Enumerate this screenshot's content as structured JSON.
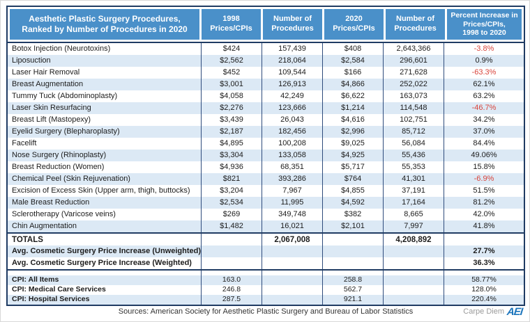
{
  "chart_data": {
    "type": "table",
    "title": "Aesthetic Plastic Surgery Procedures, Ranked by Number of Procedures in 2020",
    "header": {
      "procedure_lines": [
        "Aesthetic Plastic Surgery Procedures,",
        "Ranked by Number of Procedures in 2020"
      ],
      "price_1998_lines": [
        "1998",
        "Prices/CPIs"
      ],
      "count_1998_lines": [
        "Number of",
        "Procedures"
      ],
      "price_2020_lines": [
        "2020",
        "Prices/CPIs"
      ],
      "count_2020_lines": [
        "Number of",
        "Procedures"
      ],
      "pct_lines": [
        "Percent Increase in",
        "Prices/CPIs,",
        "1998 to 2020"
      ]
    },
    "rows": [
      {
        "procedure": "Botox Injection (Neurotoxins)",
        "price_1998": "$424",
        "procedures_1998": "157,439",
        "price_2020": "$408",
        "procedures_2020": "2,643,366",
        "pct_increase": "-3.8%"
      },
      {
        "procedure": "Liposuction",
        "price_1998": "$2,562",
        "procedures_1998": "218,064",
        "price_2020": "$2,584",
        "procedures_2020": "296,601",
        "pct_increase": "0.9%"
      },
      {
        "procedure": "Laser Hair Removal",
        "price_1998": "$452",
        "procedures_1998": "109,544",
        "price_2020": "$166",
        "procedures_2020": "271,628",
        "pct_increase": "-63.3%"
      },
      {
        "procedure": "Breast Augmentation",
        "price_1998": "$3,001",
        "procedures_1998": "126,913",
        "price_2020": "$4,866",
        "procedures_2020": "252,022",
        "pct_increase": "62.1%"
      },
      {
        "procedure": "Tummy Tuck (Abdominoplasty)",
        "price_1998": "$4,058",
        "procedures_1998": "42,249",
        "price_2020": "$6,622",
        "procedures_2020": "163,073",
        "pct_increase": "63.2%"
      },
      {
        "procedure": "Laser Skin Resurfacing",
        "price_1998": "$2,276",
        "procedures_1998": "123,666",
        "price_2020": "$1,214",
        "procedures_2020": "114,548",
        "pct_increase": "-46.7%"
      },
      {
        "procedure": "Breast Lift (Mastopexy)",
        "price_1998": "$3,439",
        "procedures_1998": "26,043",
        "price_2020": "$4,616",
        "procedures_2020": "102,751",
        "pct_increase": "34.2%"
      },
      {
        "procedure": "Eyelid Surgery (Blepharoplasty)",
        "price_1998": "$2,187",
        "procedures_1998": "182,456",
        "price_2020": "$2,996",
        "procedures_2020": "85,712",
        "pct_increase": "37.0%"
      },
      {
        "procedure": "Facelift",
        "price_1998": "$4,895",
        "procedures_1998": "100,208",
        "price_2020": "$9,025",
        "procedures_2020": "56,084",
        "pct_increase": "84.4%"
      },
      {
        "procedure": "Nose Surgery (Rhinoplasty)",
        "price_1998": "$3,304",
        "procedures_1998": "133,058",
        "price_2020": "$4,925",
        "procedures_2020": "55,436",
        "pct_increase": "49.06%"
      },
      {
        "procedure": "Breast Reduction (Women)",
        "price_1998": "$4,936",
        "procedures_1998": "68,351",
        "price_2020": "$5,717",
        "procedures_2020": "55,353",
        "pct_increase": "15.8%"
      },
      {
        "procedure": "Chemical Peel (Skin Rejuvenation)",
        "price_1998": "$821",
        "procedures_1998": "393,286",
        "price_2020": "$764",
        "procedures_2020": "41,301",
        "pct_increase": "-6.9%"
      },
      {
        "procedure": "Excision of Excess Skin (Upper arm, thigh, buttocks)",
        "price_1998": "$3,204",
        "procedures_1998": "7,967",
        "price_2020": "$4,855",
        "procedures_2020": "37,191",
        "pct_increase": "51.5%"
      },
      {
        "procedure": "Male Breast Reduction",
        "price_1998": "$2,534",
        "procedures_1998": "11,995",
        "price_2020": "$4,592",
        "procedures_2020": "17,164",
        "pct_increase": "81.2%"
      },
      {
        "procedure": "Sclerotherapy (Varicose veins)",
        "price_1998": "$269",
        "procedures_1998": "349,748",
        "price_2020": "$382",
        "procedures_2020": "8,665",
        "pct_increase": "42.0%"
      },
      {
        "procedure": "Chin Augmentation",
        "price_1998": "$1,482",
        "procedures_1998": "16,021",
        "price_2020": "$2,101",
        "procedures_2020": "7,997",
        "pct_increase": "41.8%"
      }
    ],
    "totals": {
      "label": "TOTALS",
      "procedures_1998": "2,067,008",
      "procedures_2020": "4,208,892"
    },
    "averages": [
      {
        "label": "Avg. Cosmetic Surgery Price Increase (Unweighted)",
        "pct": "27.7%"
      },
      {
        "label": "Avg. Cosmetic Surgery Price Increase (Weighted)",
        "pct": "36.3%"
      }
    ],
    "cpi_rows": [
      {
        "label": "CPI: All Items",
        "value_1998": "163.0",
        "value_2020": "258.8",
        "pct": "58.77%"
      },
      {
        "label": "CPI: Medical Care Services",
        "value_1998": "246.8",
        "value_2020": "562.7",
        "pct": "128.0%"
      },
      {
        "label": "CPI: Hospital Services",
        "value_1998": "287.5",
        "value_2020": "921.1",
        "pct": "220.4%"
      }
    ]
  },
  "footer": {
    "sources": "Sources: American Society for Aesthetic Plastic Surgery and Bureau of Labor Statistics",
    "brand": "Carpe Diem",
    "logo": "AEI"
  },
  "colors": {
    "header_blue": "#4A90C9",
    "border_navy": "#1F3B63",
    "alt_row_blue": "#DCE9F5",
    "negative_red": "#D9453C",
    "aei_blue": "#1C75BC"
  }
}
